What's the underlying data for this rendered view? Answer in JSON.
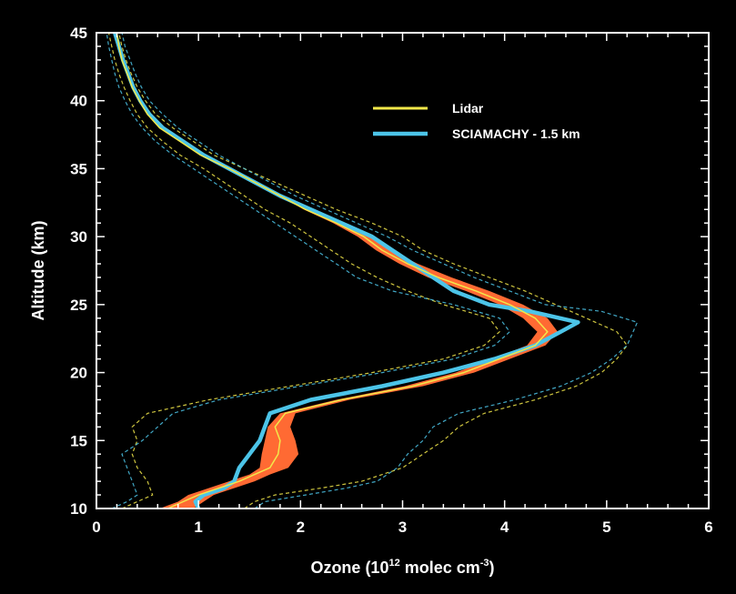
{
  "chart_data": {
    "type": "line",
    "xlabel": "Ozone (10¹² molec cm⁻³)",
    "xlabel_parts": {
      "before": "Ozone (10",
      "sup1": "12",
      "mid": " molec cm",
      "sup2": "-3",
      "after": ")"
    },
    "ylabel": "Altitude (km)",
    "xlim": [
      0,
      6
    ],
    "ylim": [
      10,
      45
    ],
    "x_ticks": [
      0,
      1,
      2,
      3,
      4,
      5,
      6
    ],
    "y_ticks": [
      10,
      15,
      20,
      25,
      30,
      35,
      40,
      45
    ],
    "grid": false,
    "legend_position": "top-right",
    "colors": {
      "background": "#000000",
      "axes": "#ffffff",
      "lidar": "#f2e84a",
      "sciamachy": "#4cc4e8",
      "lidar_band": "#ff6a33"
    },
    "series": [
      {
        "name": "Lidar",
        "color": "#f2e84a",
        "points": [
          [
            0.7,
            10
          ],
          [
            0.85,
            10.5
          ],
          [
            1.0,
            11
          ],
          [
            1.2,
            11.5
          ],
          [
            1.4,
            12
          ],
          [
            1.55,
            12.5
          ],
          [
            1.7,
            13
          ],
          [
            1.78,
            14
          ],
          [
            1.8,
            15
          ],
          [
            1.75,
            16
          ],
          [
            1.85,
            17
          ],
          [
            2.4,
            18
          ],
          [
            3.1,
            19
          ],
          [
            3.6,
            20
          ],
          [
            3.95,
            21
          ],
          [
            4.3,
            22
          ],
          [
            4.42,
            23
          ],
          [
            4.3,
            24
          ],
          [
            4.05,
            25
          ],
          [
            3.72,
            26
          ],
          [
            3.35,
            27
          ],
          [
            3.05,
            28
          ],
          [
            2.8,
            29
          ],
          [
            2.62,
            30
          ],
          [
            2.35,
            31
          ],
          [
            2.05,
            32
          ],
          [
            1.8,
            33
          ],
          [
            1.55,
            34
          ],
          [
            1.3,
            35
          ],
          [
            1.02,
            36
          ],
          [
            0.82,
            37
          ],
          [
            0.62,
            38
          ],
          [
            0.5,
            39
          ],
          [
            0.42,
            40
          ],
          [
            0.35,
            41
          ],
          [
            0.3,
            42
          ],
          [
            0.25,
            43
          ],
          [
            0.22,
            44
          ],
          [
            0.2,
            45
          ]
        ]
      },
      {
        "name": "SCIAMACHY - 1.5 km",
        "color": "#4cc4e8",
        "points": [
          [
            1.0,
            10
          ],
          [
            0.97,
            10.5
          ],
          [
            1.05,
            11
          ],
          [
            1.25,
            11.5
          ],
          [
            1.35,
            12
          ],
          [
            1.4,
            13
          ],
          [
            1.5,
            14
          ],
          [
            1.6,
            15
          ],
          [
            1.65,
            16
          ],
          [
            1.7,
            17
          ],
          [
            2.1,
            18
          ],
          [
            2.8,
            19
          ],
          [
            3.4,
            20
          ],
          [
            3.9,
            21
          ],
          [
            4.3,
            22
          ],
          [
            4.55,
            23
          ],
          [
            4.72,
            23.7
          ],
          [
            4.25,
            24.5
          ],
          [
            3.85,
            25
          ],
          [
            3.5,
            26
          ],
          [
            3.3,
            27
          ],
          [
            3.1,
            28
          ],
          [
            2.9,
            29
          ],
          [
            2.7,
            30
          ],
          [
            2.4,
            31
          ],
          [
            2.1,
            32
          ],
          [
            1.8,
            33
          ],
          [
            1.55,
            34
          ],
          [
            1.3,
            35
          ],
          [
            1.05,
            36
          ],
          [
            0.85,
            37
          ],
          [
            0.65,
            38
          ],
          [
            0.52,
            39
          ],
          [
            0.43,
            40
          ],
          [
            0.36,
            41
          ],
          [
            0.31,
            42
          ],
          [
            0.26,
            43
          ],
          [
            0.22,
            44
          ],
          [
            0.18,
            45
          ]
        ]
      }
    ],
    "lidar_band": {
      "low": [
        [
          0.62,
          10
        ],
        [
          0.8,
          10.5
        ],
        [
          0.9,
          11
        ],
        [
          1.1,
          11.5
        ],
        [
          1.3,
          12
        ],
        [
          1.5,
          12.5
        ],
        [
          1.6,
          13
        ],
        [
          1.62,
          14
        ],
        [
          1.65,
          15
        ],
        [
          1.68,
          16
        ],
        [
          1.8,
          17
        ],
        [
          2.35,
          18
        ],
        [
          3.02,
          19
        ],
        [
          3.52,
          20
        ],
        [
          3.88,
          21
        ],
        [
          4.22,
          22
        ],
        [
          4.32,
          23
        ],
        [
          4.18,
          24
        ],
        [
          3.95,
          25
        ],
        [
          3.62,
          26
        ],
        [
          3.25,
          27
        ],
        [
          2.97,
          28
        ],
        [
          2.74,
          29
        ],
        [
          2.56,
          30
        ],
        [
          2.32,
          31
        ],
        [
          2.03,
          32
        ],
        [
          1.8,
          33
        ]
      ],
      "high": [
        [
          0.95,
          10
        ],
        [
          1.05,
          10.5
        ],
        [
          1.15,
          11
        ],
        [
          1.35,
          11.5
        ],
        [
          1.55,
          12
        ],
        [
          1.7,
          12.5
        ],
        [
          1.88,
          13
        ],
        [
          1.98,
          14
        ],
        [
          1.95,
          15
        ],
        [
          1.9,
          16
        ],
        [
          1.95,
          17
        ],
        [
          2.48,
          18
        ],
        [
          3.2,
          19
        ],
        [
          3.7,
          20
        ],
        [
          4.05,
          21
        ],
        [
          4.4,
          22
        ],
        [
          4.52,
          23
        ],
        [
          4.42,
          24
        ],
        [
          4.18,
          25
        ],
        [
          3.85,
          26
        ],
        [
          3.48,
          27
        ],
        [
          3.15,
          28
        ],
        [
          2.88,
          29
        ],
        [
          2.7,
          30
        ],
        [
          2.4,
          31
        ],
        [
          2.08,
          32
        ],
        [
          1.8,
          33
        ]
      ]
    },
    "envelopes": [
      {
        "color": "#f2e84a",
        "points": [
          [
            0.25,
            10
          ],
          [
            0.4,
            10.5
          ],
          [
            0.55,
            11
          ],
          [
            0.5,
            12
          ],
          [
            0.4,
            13
          ],
          [
            0.35,
            14
          ],
          [
            0.4,
            15
          ],
          [
            0.35,
            16
          ],
          [
            0.5,
            17
          ],
          [
            1.1,
            18
          ],
          [
            1.9,
            19
          ],
          [
            2.7,
            20
          ],
          [
            3.4,
            21
          ],
          [
            3.8,
            22
          ],
          [
            3.95,
            23
          ],
          [
            3.85,
            24
          ],
          [
            3.4,
            25
          ],
          [
            3.05,
            26
          ],
          [
            2.75,
            27
          ],
          [
            2.5,
            28
          ],
          [
            2.3,
            29
          ],
          [
            2.1,
            30
          ],
          [
            1.9,
            31
          ],
          [
            1.65,
            32
          ],
          [
            1.45,
            33
          ],
          [
            1.25,
            34
          ],
          [
            1.05,
            35
          ],
          [
            0.82,
            36
          ],
          [
            0.65,
            37
          ],
          [
            0.5,
            38
          ],
          [
            0.4,
            39
          ],
          [
            0.33,
            40
          ],
          [
            0.27,
            41
          ],
          [
            0.22,
            42
          ],
          [
            0.18,
            43
          ],
          [
            0.15,
            44
          ],
          [
            0.12,
            45
          ]
        ]
      },
      {
        "color": "#f2e84a",
        "points": [
          [
            1.45,
            10
          ],
          [
            1.55,
            10.5
          ],
          [
            1.75,
            11
          ],
          [
            2.2,
            11.5
          ],
          [
            2.6,
            12
          ],
          [
            3.0,
            13
          ],
          [
            3.2,
            14
          ],
          [
            3.4,
            15
          ],
          [
            3.55,
            16
          ],
          [
            3.8,
            17
          ],
          [
            4.3,
            18
          ],
          [
            4.7,
            19
          ],
          [
            4.95,
            20
          ],
          [
            5.1,
            21
          ],
          [
            5.2,
            22
          ],
          [
            5.1,
            23
          ],
          [
            4.8,
            24
          ],
          [
            4.5,
            25
          ],
          [
            4.2,
            26
          ],
          [
            3.85,
            27
          ],
          [
            3.5,
            28
          ],
          [
            3.2,
            29
          ],
          [
            3.0,
            30
          ],
          [
            2.7,
            31
          ],
          [
            2.35,
            32
          ],
          [
            2.05,
            33
          ],
          [
            1.75,
            34
          ],
          [
            1.45,
            35
          ],
          [
            1.15,
            36
          ],
          [
            0.95,
            37
          ],
          [
            0.75,
            38
          ],
          [
            0.58,
            39
          ],
          [
            0.48,
            40
          ],
          [
            0.4,
            41
          ],
          [
            0.34,
            42
          ],
          [
            0.29,
            43
          ],
          [
            0.25,
            44
          ],
          [
            0.22,
            45
          ]
        ]
      },
      {
        "color": "#4cc4e8",
        "points": [
          [
            0.15,
            10
          ],
          [
            0.3,
            10.5
          ],
          [
            0.4,
            11
          ],
          [
            0.35,
            12
          ],
          [
            0.3,
            13
          ],
          [
            0.25,
            14
          ],
          [
            0.45,
            15
          ],
          [
            0.6,
            16
          ],
          [
            0.75,
            17
          ],
          [
            1.2,
            18
          ],
          [
            2.0,
            19
          ],
          [
            2.8,
            20
          ],
          [
            3.5,
            21
          ],
          [
            3.9,
            22
          ],
          [
            4.05,
            23
          ],
          [
            3.95,
            24
          ],
          [
            3.5,
            25
          ],
          [
            2.9,
            26
          ],
          [
            2.55,
            27
          ],
          [
            2.35,
            28
          ],
          [
            2.15,
            29
          ],
          [
            1.95,
            30
          ],
          [
            1.75,
            31
          ],
          [
            1.55,
            32
          ],
          [
            1.35,
            33
          ],
          [
            1.15,
            34
          ],
          [
            0.95,
            35
          ],
          [
            0.75,
            36
          ],
          [
            0.58,
            37
          ],
          [
            0.45,
            38
          ],
          [
            0.35,
            39
          ],
          [
            0.28,
            40
          ],
          [
            0.22,
            41
          ],
          [
            0.18,
            42
          ],
          [
            0.15,
            43
          ],
          [
            0.12,
            44
          ],
          [
            0.1,
            45
          ]
        ]
      },
      {
        "color": "#4cc4e8",
        "points": [
          [
            1.55,
            10
          ],
          [
            1.65,
            10.5
          ],
          [
            2.05,
            11
          ],
          [
            2.45,
            11.5
          ],
          [
            2.75,
            12
          ],
          [
            2.95,
            13
          ],
          [
            3.05,
            14
          ],
          [
            3.2,
            15
          ],
          [
            3.3,
            16
          ],
          [
            3.55,
            17
          ],
          [
            4.1,
            18
          ],
          [
            4.55,
            19
          ],
          [
            4.85,
            20
          ],
          [
            5.05,
            21
          ],
          [
            5.2,
            22
          ],
          [
            5.3,
            23.7
          ],
          [
            4.95,
            24.5
          ],
          [
            4.4,
            25
          ],
          [
            4.05,
            26
          ],
          [
            3.7,
            27
          ],
          [
            3.4,
            28
          ],
          [
            3.1,
            29
          ],
          [
            2.85,
            30
          ],
          [
            2.55,
            31
          ],
          [
            2.25,
            32
          ],
          [
            1.95,
            33
          ],
          [
            1.7,
            34
          ],
          [
            1.45,
            35
          ],
          [
            1.2,
            36
          ],
          [
            1.0,
            37
          ],
          [
            0.8,
            38
          ],
          [
            0.65,
            39
          ],
          [
            0.52,
            40
          ],
          [
            0.44,
            41
          ],
          [
            0.38,
            42
          ],
          [
            0.33,
            43
          ],
          [
            0.28,
            44
          ],
          [
            0.25,
            45
          ]
        ]
      }
    ]
  }
}
